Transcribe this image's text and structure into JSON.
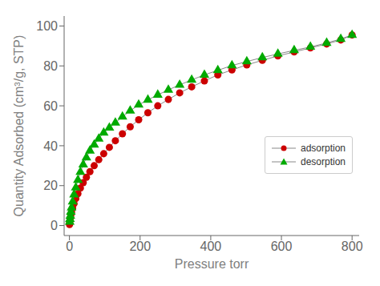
{
  "chart_data": {
    "type": "line",
    "xlabel": "Pressure torr",
    "ylabel": "Quantity Adsorbed (cm³/g, STP)",
    "xlim": [
      -15,
      820
    ],
    "ylim": [
      -5,
      105
    ],
    "xticks": [
      0,
      200,
      400,
      600,
      800
    ],
    "yticks": [
      0,
      20,
      40,
      60,
      80,
      100
    ],
    "grid": false,
    "legend": "lower right",
    "color": "#888888",
    "series": [
      {
        "name": "adsorption",
        "color": "#cc0000",
        "marker": "circle",
        "x": [
          0.3,
          0.8,
          1.5,
          2.5,
          4,
          6,
          9,
          13,
          18,
          24,
          31,
          39,
          48,
          58,
          70,
          83,
          97,
          113,
          130,
          150,
          172,
          196,
          222,
          250,
          280,
          312,
          346,
          382,
          420,
          460,
          502,
          546,
          590,
          636,
          682,
          728,
          768,
          800
        ],
        "values": [
          0.5,
          1.5,
          2.5,
          3.8,
          5.2,
          6.8,
          8.8,
          11.0,
          13.5,
          16.0,
          18.8,
          21.5,
          24.2,
          27.0,
          30.0,
          33.0,
          36.0,
          39.2,
          42.5,
          46.0,
          49.5,
          53.0,
          56.5,
          60.0,
          63.2,
          66.5,
          69.5,
          72.5,
          75.5,
          78.0,
          80.5,
          82.8,
          85.0,
          87.0,
          89.0,
          91.0,
          93.0,
          95.5
        ]
      },
      {
        "name": "desorption",
        "color": "#00aa00",
        "marker": "triangle",
        "x": [
          800,
          768,
          728,
          682,
          636,
          590,
          546,
          502,
          460,
          420,
          382,
          346,
          312,
          280,
          250,
          222,
          196,
          172,
          150,
          130,
          113,
          97,
          83,
          70,
          58,
          48,
          39,
          31,
          24,
          18,
          13,
          9,
          6,
          4,
          2.5,
          1.5,
          0.8
        ],
        "values": [
          95.5,
          93.5,
          91.5,
          89.5,
          87.8,
          86.0,
          84.2,
          82.2,
          80.2,
          77.8,
          75.5,
          73.0,
          70.5,
          68.0,
          65.5,
          63.0,
          60.5,
          57.5,
          54.5,
          51.5,
          49.0,
          46.5,
          43.5,
          40.5,
          37.5,
          34.0,
          30.5,
          26.8,
          22.8,
          19.0,
          15.5,
          12.0,
          9.0,
          6.8,
          4.8,
          3.2,
          1.8
        ]
      }
    ]
  }
}
